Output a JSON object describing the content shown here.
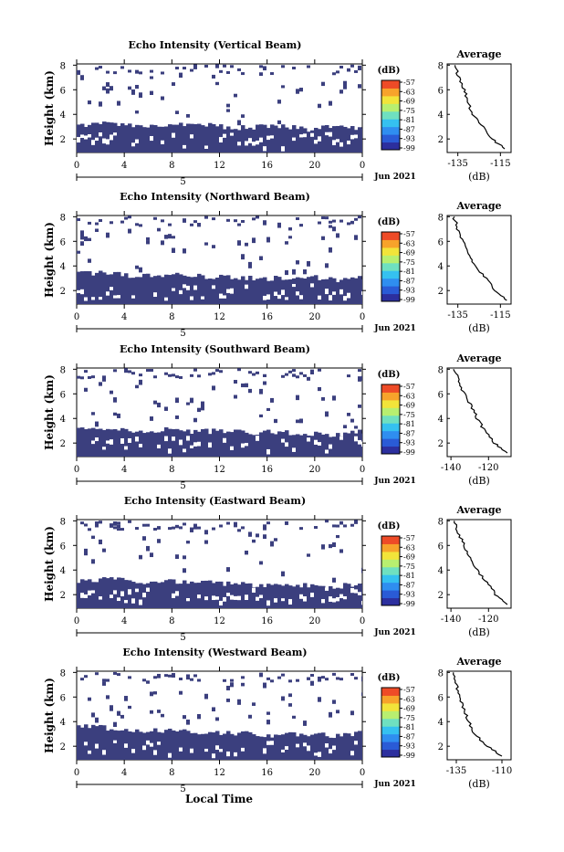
{
  "figure": {
    "xlabel": "Local Time",
    "date_label": "Jun 2021",
    "day_label": "5",
    "colorbar_unit": "(dB)",
    "colorbar_ticks": [
      "-57",
      "-63",
      "-69",
      "-75",
      "-81",
      "-87",
      "-93",
      "-99"
    ],
    "colorbar_colors": [
      "#2c2f9e",
      "#2a5bd6",
      "#2f8ef0",
      "#35c1f0",
      "#6fe0c0",
      "#b8ef70",
      "#f2e43a",
      "#f7a32b",
      "#ee4b27"
    ],
    "fill_color": "#3b3f7e",
    "average_title": "Average",
    "average_xunit": "(dB)"
  },
  "chart_data": [
    {
      "type": "heatmap",
      "title": "Echo Intensity (Vertical Beam)",
      "ylabel": "Height (km)",
      "x_ticks": [
        "0",
        "4",
        "8",
        "12",
        "16",
        "20",
        "0"
      ],
      "xlim": [
        0,
        24
      ],
      "y_ticks": [
        "2",
        "4",
        "6",
        "8"
      ],
      "ylim": [
        0.9,
        8.1
      ],
      "lower_layer_top_km": [
        3.1,
        3.3,
        3.0,
        3.1,
        3.2,
        3.0,
        2.9,
        3.1,
        2.8,
        3.0,
        2.9
      ],
      "average_profile": {
        "x_ticks": [
          "-135",
          "-115"
        ],
        "xlim": [
          -140,
          -110
        ],
        "height_km": [
          8,
          7,
          6,
          5,
          4,
          3,
          2,
          1.2
        ],
        "value_db": [
          -137,
          -134,
          -132,
          -130,
          -128,
          -123,
          -119,
          -113
        ]
      }
    },
    {
      "type": "heatmap",
      "title": "Echo Intensity (Northward Beam)",
      "ylabel": "Height (km)",
      "x_ticks": [
        "0",
        "4",
        "8",
        "12",
        "16",
        "20",
        "0"
      ],
      "xlim": [
        0,
        24
      ],
      "y_ticks": [
        "2",
        "4",
        "6",
        "8"
      ],
      "ylim": [
        0.9,
        8.1
      ],
      "lower_layer_top_km": [
        3.5,
        3.4,
        3.2,
        3.3,
        3.2,
        3.1,
        3.0,
        3.0,
        3.1,
        2.9,
        3.0
      ],
      "average_profile": {
        "x_ticks": [
          "-135",
          "-115"
        ],
        "xlim": [
          -140,
          -110
        ],
        "height_km": [
          8,
          7,
          6,
          5,
          4,
          3,
          2,
          1.2
        ],
        "value_db": [
          -137,
          -135,
          -133,
          -130,
          -127,
          -122,
          -117,
          -112
        ]
      }
    },
    {
      "type": "heatmap",
      "title": "Echo Intensity (Southward Beam)",
      "ylabel": "Height (km)",
      "x_ticks": [
        "0",
        "4",
        "8",
        "12",
        "16",
        "20",
        "0"
      ],
      "xlim": [
        0,
        24
      ],
      "y_ticks": [
        "2",
        "4",
        "6",
        "8"
      ],
      "ylim": [
        0.9,
        8.1
      ],
      "lower_layer_top_km": [
        3.4,
        3.2,
        3.0,
        3.1,
        2.9,
        3.0,
        2.8,
        2.9,
        2.8,
        2.7,
        2.9
      ],
      "average_profile": {
        "x_ticks": [
          "-140",
          "-120"
        ],
        "xlim": [
          -142,
          -108
        ],
        "height_km": [
          8,
          7,
          6,
          5,
          4,
          3,
          2,
          1.2
        ],
        "value_db": [
          -138,
          -136,
          -133,
          -129,
          -126,
          -122,
          -117,
          -110
        ]
      }
    },
    {
      "type": "heatmap",
      "title": "Echo Intensity (Eastward Beam)",
      "ylabel": "Height (km)",
      "x_ticks": [
        "0",
        "4",
        "8",
        "12",
        "16",
        "20",
        "0"
      ],
      "xlim": [
        0,
        24
      ],
      "y_ticks": [
        "2",
        "4",
        "6",
        "8"
      ],
      "ylim": [
        0.9,
        8.1
      ],
      "lower_layer_top_km": [
        3.1,
        3.3,
        3.0,
        3.1,
        3.0,
        2.9,
        2.8,
        2.7,
        2.8,
        2.7,
        2.8
      ],
      "average_profile": {
        "x_ticks": [
          "-140",
          "-120"
        ],
        "xlim": [
          -142,
          -108
        ],
        "height_km": [
          8,
          7,
          6,
          5,
          4,
          3,
          2,
          1.2
        ],
        "value_db": [
          -138,
          -136,
          -133,
          -130,
          -126,
          -121,
          -116,
          -110
        ]
      }
    },
    {
      "type": "heatmap",
      "title": "Echo Intensity (Westward Beam)",
      "ylabel": "Height (km)",
      "x_ticks": [
        "0",
        "4",
        "8",
        "12",
        "16",
        "20",
        "0"
      ],
      "xlim": [
        0,
        24
      ],
      "y_ticks": [
        "2",
        "4",
        "6",
        "8"
      ],
      "ylim": [
        0.9,
        8.1
      ],
      "lower_layer_top_km": [
        3.6,
        3.5,
        3.3,
        3.3,
        3.2,
        3.1,
        3.0,
        2.9,
        3.0,
        2.8,
        3.1
      ],
      "average_profile": {
        "x_ticks": [
          "-135",
          "-110"
        ],
        "xlim": [
          -140,
          -105
        ],
        "height_km": [
          8,
          7,
          6,
          5,
          4,
          3,
          2,
          1.2
        ],
        "value_db": [
          -137,
          -135,
          -133,
          -131,
          -128,
          -125,
          -118,
          -110
        ]
      }
    }
  ]
}
